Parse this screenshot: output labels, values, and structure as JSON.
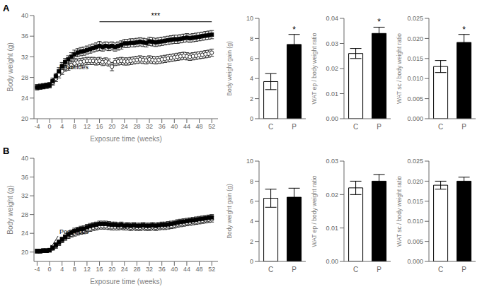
{
  "chart_data": [
    {
      "type": "line",
      "title": "A",
      "xlabel": "Exposure time (weeks)",
      "ylabel": "Body weight (g)",
      "x": [
        -4,
        -3,
        -2,
        -1,
        0,
        1,
        2,
        3,
        4,
        5,
        6,
        7,
        8,
        9,
        10,
        11,
        12,
        13,
        14,
        15,
        16,
        17,
        18,
        19,
        20,
        21,
        22,
        23,
        24,
        25,
        26,
        27,
        28,
        29,
        30,
        31,
        32,
        33,
        34,
        35,
        36,
        37,
        38,
        39,
        40,
        41,
        42,
        43,
        44,
        45,
        46,
        47,
        48,
        49,
        50,
        51,
        52
      ],
      "series": [
        {
          "color": "black",
          "marker": "circle",
          "values": [
            26.1,
            26.2,
            26.3,
            26.4,
            26.5,
            27.0,
            27.8,
            28.5,
            29.2,
            29.8,
            30.1,
            30.4,
            30.7,
            30.9,
            31.0,
            31.1,
            31.2,
            31.2,
            31.2,
            31.1,
            31.2,
            31.0,
            31.1,
            30.9,
            30.1,
            31.0,
            31.1,
            31.2,
            31.1,
            31.1,
            31.2,
            31.3,
            31.4,
            31.5,
            31.4,
            31.3,
            31.5,
            31.4,
            31.3,
            31.4,
            31.5,
            31.6,
            31.7,
            31.8,
            31.9,
            32.0,
            32.1,
            32.2,
            32.1,
            32.0,
            32.1,
            32.2,
            32.3,
            32.4,
            32.5,
            32.6,
            32.8
          ],
          "errors": [
            0.5,
            0.5,
            0.5,
            0.5,
            0.5,
            0.5,
            0.6,
            0.6,
            0.6,
            0.6,
            0.7,
            0.7,
            0.7,
            0.7,
            0.7,
            0.7,
            0.7,
            0.7,
            0.7,
            0.7,
            0.7,
            0.7,
            0.7,
            0.7,
            0.8,
            0.7,
            0.7,
            0.7,
            0.7,
            0.7,
            0.7,
            0.7,
            0.7,
            0.7,
            0.7,
            0.7,
            0.7,
            0.7,
            0.7,
            0.7,
            0.7,
            0.7,
            0.7,
            0.7,
            0.7,
            0.7,
            0.7,
            0.7,
            0.7,
            0.7,
            0.7,
            0.7,
            0.7,
            0.7,
            0.7,
            0.7,
            0.7
          ]
        },
        {
          "color": "black",
          "marker": "square",
          "values": [
            26.1,
            26.2,
            26.3,
            26.4,
            26.5,
            27.3,
            28.2,
            29.2,
            30.2,
            31.0,
            31.5,
            32.0,
            32.5,
            32.8,
            33.0,
            33.1,
            33.3,
            33.5,
            33.7,
            33.9,
            34.1,
            33.9,
            34.1,
            34.0,
            34.1,
            33.9,
            34.1,
            34.3,
            34.6,
            34.6,
            34.7,
            34.7,
            34.8,
            34.9,
            34.8,
            34.7,
            35.0,
            34.9,
            34.8,
            34.9,
            35.0,
            35.1,
            35.2,
            35.3,
            35.4,
            35.4,
            35.5,
            35.6,
            35.7,
            35.6,
            35.7,
            35.8,
            35.9,
            36.0,
            36.1,
            36.2,
            36.3
          ],
          "errors": [
            0.5,
            0.5,
            0.5,
            0.5,
            0.5,
            0.6,
            0.6,
            0.7,
            0.7,
            0.7,
            0.7,
            0.8,
            0.8,
            0.8,
            0.8,
            0.8,
            0.8,
            0.8,
            0.8,
            0.8,
            0.9,
            0.8,
            0.8,
            0.8,
            0.8,
            0.8,
            0.8,
            0.8,
            0.8,
            0.8,
            0.8,
            0.8,
            0.8,
            0.8,
            0.8,
            0.8,
            0.8,
            0.8,
            0.8,
            0.8,
            0.8,
            0.8,
            0.8,
            0.8,
            0.8,
            0.8,
            0.8,
            0.8,
            0.8,
            0.8,
            0.8,
            0.8,
            0.8,
            0.8,
            0.8,
            0.8,
            0.8
          ]
        }
      ],
      "xlim": [
        -5,
        54
      ],
      "xticks": [
        -4,
        0,
        4,
        8,
        12,
        16,
        20,
        24,
        28,
        32,
        36,
        40,
        44,
        48,
        52
      ],
      "ylim": [
        20,
        40
      ],
      "yticks": [
        20,
        24,
        28,
        32,
        36,
        40
      ],
      "annotations": [
        {
          "text": "Pesticides",
          "x": 0,
          "y": 26.5
        },
        {
          "text": "***",
          "x": [
            16,
            52
          ],
          "y": 38.8
        }
      ]
    },
    {
      "type": "bar",
      "ylabel": "Body weight gain (g)",
      "categories": [
        "C",
        "P"
      ],
      "values": [
        3.7,
        7.4
      ],
      "errors": [
        0.8,
        1.0
      ],
      "colors": [
        "white",
        "black"
      ],
      "ylim": [
        0,
        10
      ],
      "yticks": [
        0,
        2,
        4,
        6,
        8,
        10
      ],
      "annotations": [
        {
          "text": "*",
          "category": "P"
        }
      ]
    },
    {
      "type": "bar",
      "ylabel": "WAT ep / body weight ratio",
      "categories": [
        "C",
        "P"
      ],
      "values": [
        0.026,
        0.034
      ],
      "errors": [
        0.002,
        0.0025
      ],
      "colors": [
        "white",
        "black"
      ],
      "ylim": [
        0,
        0.04
      ],
      "yticks": [
        {
          "value": 0,
          "label": "0.00"
        },
        0.01,
        0.02,
        0.03,
        0.04
      ],
      "annotations": [
        {
          "text": "*",
          "category": "P"
        }
      ]
    },
    {
      "type": "bar",
      "ylabel": "WAT sc / body weight ratio",
      "categories": [
        "C",
        "P"
      ],
      "values": [
        0.013,
        0.019
      ],
      "errors": [
        0.0015,
        0.002
      ],
      "colors": [
        "white",
        "black"
      ],
      "ylim": [
        0,
        0.025
      ],
      "yticks": [
        {
          "value": 0,
          "label": "0.000"
        },
        0.005,
        {
          "value": 0.01,
          "label": "0.010"
        },
        0.015,
        {
          "value": 0.02,
          "label": "0.020"
        },
        0.025
      ],
      "annotations": [
        {
          "text": "*",
          "category": "P"
        }
      ]
    },
    {
      "type": "line",
      "title": "B",
      "xlabel": "Exposure time (weeks)",
      "ylabel": "Body weight (g)",
      "x": [
        -4,
        -3,
        -2,
        -1,
        0,
        1,
        2,
        3,
        4,
        5,
        6,
        7,
        8,
        9,
        10,
        11,
        12,
        13,
        14,
        15,
        16,
        17,
        18,
        19,
        20,
        21,
        22,
        23,
        24,
        25,
        26,
        27,
        28,
        29,
        30,
        31,
        32,
        33,
        34,
        35,
        36,
        37,
        38,
        39,
        40,
        41,
        42,
        43,
        44,
        45,
        46,
        47,
        48,
        49,
        50,
        51,
        52
      ],
      "series": [
        {
          "color": "black",
          "marker": "circle",
          "values": [
            20.2,
            20.2,
            20.3,
            20.3,
            20.4,
            20.8,
            21.3,
            21.9,
            22.5,
            23.0,
            23.4,
            23.7,
            24.0,
            24.2,
            24.4,
            24.5,
            24.8,
            25.0,
            25.2,
            25.3,
            25.5,
            25.5,
            25.5,
            25.4,
            25.3,
            25.3,
            25.3,
            25.4,
            25.3,
            25.3,
            25.2,
            25.3,
            25.2,
            25.2,
            25.3,
            25.2,
            25.2,
            25.3,
            25.2,
            25.3,
            25.4,
            25.4,
            25.5,
            25.6,
            25.7,
            25.9,
            26.0,
            26.1,
            26.2,
            26.3,
            26.4,
            26.5,
            26.6,
            26.7,
            26.8,
            26.9,
            27.0
          ],
          "errors": [
            0.4,
            0.4,
            0.4,
            0.4,
            0.4,
            0.4,
            0.5,
            0.5,
            0.5,
            0.5,
            0.5,
            0.5,
            0.6,
            0.6,
            0.6,
            0.6,
            0.6,
            0.6,
            0.6,
            0.6,
            0.6,
            0.6,
            0.6,
            0.6,
            0.6,
            0.6,
            0.6,
            0.6,
            0.6,
            0.6,
            0.6,
            0.6,
            0.6,
            0.6,
            0.6,
            0.6,
            0.6,
            0.6,
            0.6,
            0.6,
            0.6,
            0.6,
            0.6,
            0.6,
            0.6,
            0.6,
            0.6,
            0.6,
            0.6,
            0.6,
            0.6,
            0.6,
            0.6,
            0.6,
            0.6,
            0.6,
            0.6
          ]
        },
        {
          "color": "black",
          "marker": "square",
          "values": [
            20.2,
            20.2,
            20.3,
            20.3,
            20.4,
            20.9,
            21.5,
            22.1,
            22.7,
            23.2,
            23.7,
            24.1,
            24.5,
            24.7,
            24.9,
            25.0,
            25.3,
            25.5,
            25.7,
            25.8,
            26.0,
            26.0,
            26.0,
            25.9,
            25.8,
            25.8,
            25.7,
            25.8,
            25.6,
            25.7,
            25.6,
            25.7,
            25.6,
            25.6,
            25.7,
            25.6,
            25.6,
            25.7,
            25.6,
            25.7,
            25.8,
            25.8,
            25.9,
            26.0,
            26.1,
            26.3,
            26.4,
            26.5,
            26.6,
            26.7,
            26.8,
            26.9,
            27.0,
            27.1,
            27.2,
            27.3,
            27.4
          ],
          "errors": [
            0.4,
            0.4,
            0.4,
            0.4,
            0.4,
            0.4,
            0.5,
            0.5,
            0.5,
            0.5,
            0.6,
            0.6,
            0.6,
            0.6,
            0.6,
            0.6,
            0.6,
            0.6,
            0.6,
            0.6,
            0.6,
            0.6,
            0.6,
            0.6,
            0.6,
            0.6,
            0.6,
            0.6,
            0.6,
            0.6,
            0.6,
            0.6,
            0.6,
            0.6,
            0.6,
            0.6,
            0.6,
            0.6,
            0.6,
            0.6,
            0.6,
            0.6,
            0.6,
            0.6,
            0.6,
            0.6,
            0.6,
            0.6,
            0.6,
            0.6,
            0.6,
            0.6,
            0.6,
            0.6,
            0.6,
            0.6,
            0.6
          ]
        }
      ],
      "xlim": [
        -5,
        54
      ],
      "xticks": [
        -4,
        0,
        4,
        8,
        12,
        16,
        20,
        24,
        28,
        32,
        36,
        40,
        44,
        48,
        52
      ],
      "ylim": [
        18,
        40
      ],
      "yticks": [
        20,
        24,
        28,
        32,
        36,
        40
      ],
      "annotations": [
        {
          "text": "Pesticides",
          "x": 0,
          "y": 20.4
        }
      ]
    },
    {
      "type": "bar",
      "ylabel": "Body weight gain (g)",
      "categories": [
        "C",
        "P"
      ],
      "values": [
        6.3,
        6.4
      ],
      "errors": [
        0.9,
        0.9
      ],
      "colors": [
        "white",
        "black"
      ],
      "ylim": [
        0,
        10
      ],
      "yticks": [
        0,
        2,
        4,
        6,
        8,
        10
      ]
    },
    {
      "type": "bar",
      "ylabel": "WAT ep / body weight ratio",
      "categories": [
        "C",
        "P"
      ],
      "values": [
        0.022,
        0.024
      ],
      "errors": [
        0.002,
        0.002
      ],
      "colors": [
        "white",
        "black"
      ],
      "ylim": [
        0,
        0.03
      ],
      "yticks": [
        {
          "value": 0,
          "label": "0.00"
        },
        0.01,
        0.02,
        0.03
      ]
    },
    {
      "type": "bar",
      "ylabel": "WAT sc / body weight ratio",
      "categories": [
        "C",
        "P"
      ],
      "values": [
        0.019,
        0.02
      ],
      "errors": [
        0.001,
        0.001
      ],
      "colors": [
        "white",
        "black"
      ],
      "ylim": [
        0,
        0.025
      ],
      "yticks": [
        {
          "value": 0,
          "label": "0.000"
        },
        0.005,
        {
          "value": 0.01,
          "label": "0.010"
        },
        0.015,
        {
          "value": 0.02,
          "label": "0.020"
        },
        0.025
      ]
    }
  ]
}
